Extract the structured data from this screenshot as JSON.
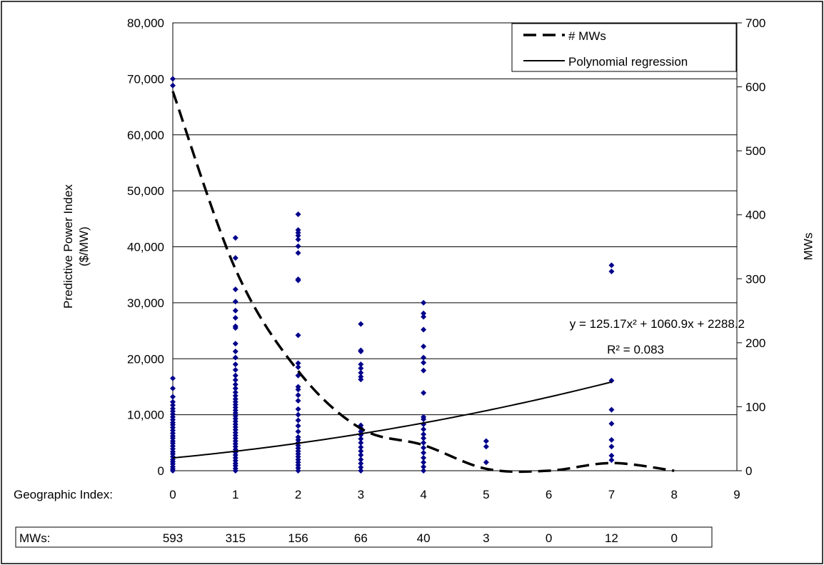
{
  "chart_data": {
    "type": "scatter",
    "title": "",
    "ylabel": "Predictive Power Index\n($/MW)",
    "y2label": "MWs",
    "xlabel": "Geographic Index:",
    "xlim": [
      0,
      9
    ],
    "ylim": [
      0,
      80000
    ],
    "y2lim": [
      0,
      700
    ],
    "x_ticks": [
      "0",
      "1",
      "2",
      "3",
      "4",
      "5",
      "6",
      "7",
      "8",
      "9"
    ],
    "y_ticks": [
      "0",
      "10,000",
      "20,000",
      "30,000",
      "40,000",
      "50,000",
      "60,000",
      "70,000",
      "80,000"
    ],
    "y2_ticks": [
      "0",
      "100",
      "200",
      "300",
      "400",
      "500",
      "600",
      "700"
    ],
    "grid": "horizontal",
    "legend_position": "top-right",
    "legend": [
      {
        "label": "# MWs",
        "style": "dashed"
      },
      {
        "label": "Polynomial regression",
        "style": "solid"
      }
    ],
    "scatter_color": "#00008B",
    "scatter": [
      {
        "x": 0,
        "y": [
          0,
          300,
          700,
          1200,
          1600,
          2000,
          2500,
          3000,
          3400,
          3900,
          4400,
          4900,
          5300,
          5800,
          6200,
          6700,
          7200,
          7700,
          8200,
          8600,
          9100,
          9600,
          10100,
          10600,
          11100,
          11700,
          12300,
          13200,
          14700,
          16500,
          68800,
          70000
        ]
      },
      {
        "x": 1,
        "y": [
          0,
          400,
          900,
          1300,
          1800,
          2300,
          2800,
          3300,
          3800,
          4300,
          4800,
          5300,
          5800,
          6300,
          6800,
          7300,
          7800,
          8300,
          8800,
          9300,
          9800,
          10300,
          10800,
          11300,
          11800,
          12300,
          12800,
          13400,
          14000,
          14700,
          15400,
          16200,
          17000,
          18000,
          19000,
          20200,
          21300,
          22700,
          25500,
          25800,
          27300,
          28600,
          30200,
          32400,
          38000,
          41600
        ]
      },
      {
        "x": 2,
        "y": [
          0,
          500,
          1000,
          1500,
          2000,
          2500,
          3000,
          3500,
          4000,
          4500,
          5000,
          5500,
          6000,
          7000,
          8000,
          9000,
          10000,
          11000,
          12500,
          13500,
          14500,
          15000,
          17000,
          18500,
          19200,
          24200,
          34000,
          34200,
          38900,
          40100,
          41300,
          42000,
          42500,
          43000,
          45800
        ]
      },
      {
        "x": 3,
        "y": [
          0,
          600,
          1300,
          2000,
          2800,
          3500,
          4200,
          5000,
          5700,
          6400,
          7000,
          7600,
          8100,
          16300,
          16800,
          17500,
          18300,
          19000,
          21300,
          21500,
          26200
        ]
      },
      {
        "x": 4,
        "y": [
          0,
          700,
          1500,
          2300,
          3200,
          4100,
          5000,
          5800,
          6500,
          7400,
          8300,
          9200,
          9600,
          13900,
          17900,
          19300,
          20200,
          22200,
          25200,
          27500,
          28100,
          30000
        ]
      },
      {
        "x": 5,
        "y": [
          1500,
          4300,
          5300
        ]
      },
      {
        "x": 7,
        "y": [
          1900,
          2700,
          4300,
          5500,
          8400,
          10900,
          16100,
          35600,
          36700
        ]
      }
    ],
    "mws_series": {
      "name": "# MWs",
      "x": [
        0,
        1,
        2,
        3,
        4,
        5,
        6,
        7,
        8
      ],
      "values": [
        593,
        315,
        156,
        66,
        40,
        3,
        0,
        12,
        0
      ]
    },
    "regression": {
      "name": "Polynomial regression",
      "a": 125.17,
      "b": 1060.9,
      "c": 2288.2,
      "x_range": [
        0,
        7
      ]
    },
    "annotation": {
      "equation": "y = 125.17x² + 1060.9x + 2288.2",
      "r2": "R² = 0.083"
    },
    "table": {
      "label": "MWs:",
      "values": [
        "593",
        "315",
        "156",
        "66",
        "40",
        "3",
        "0",
        "12",
        "0"
      ]
    }
  }
}
